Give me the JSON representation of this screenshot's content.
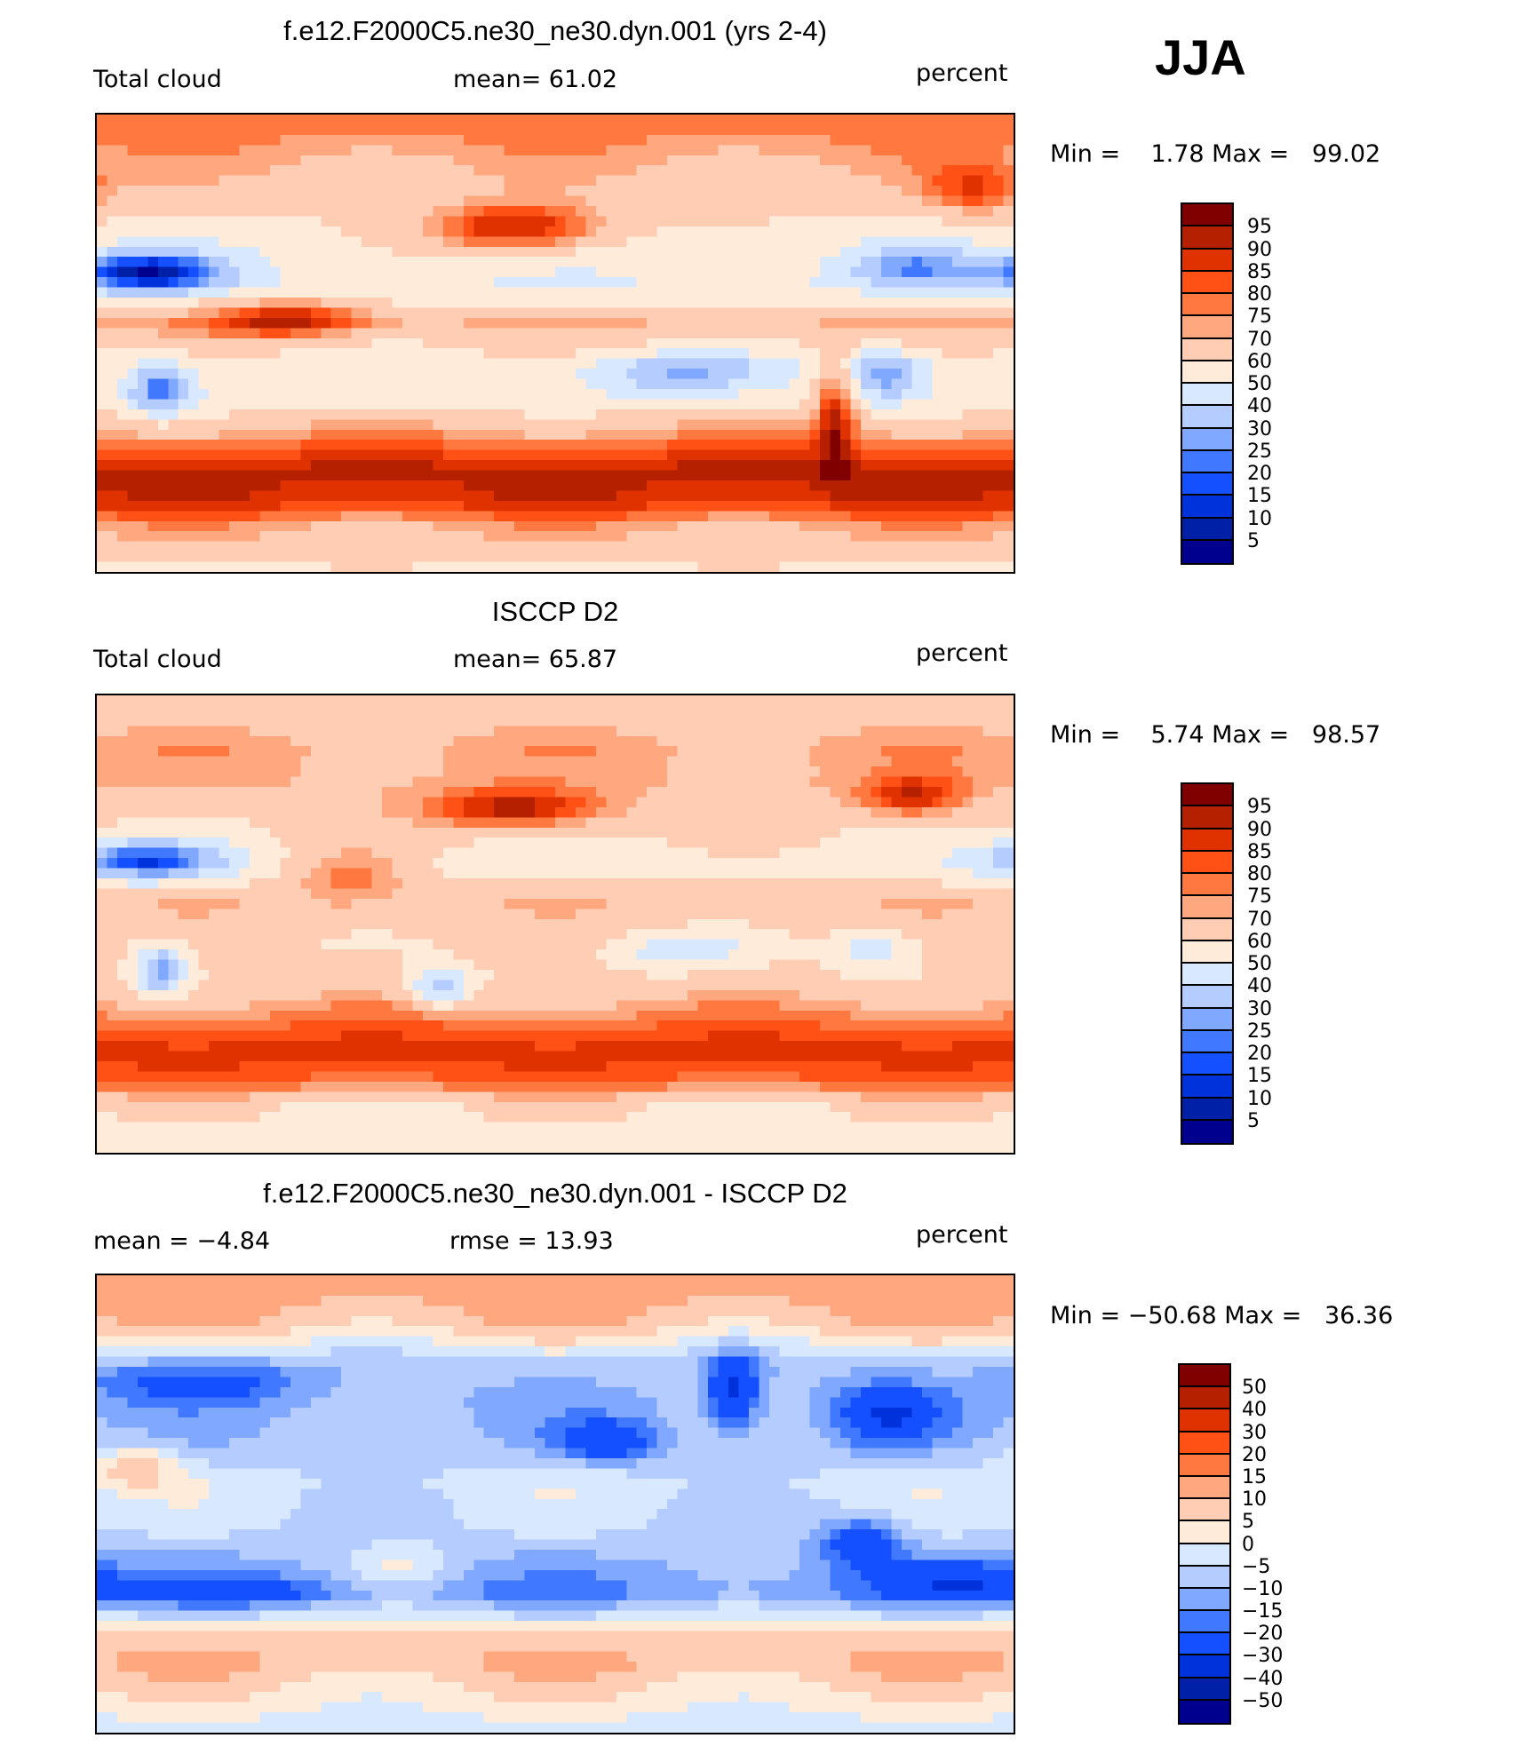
{
  "jja": "JJA",
  "chart_data": [
    {
      "type": "heatmap",
      "title": "f.e12.F2000C5.ne30_ne30.dyn.001 (yrs 2-4)",
      "left_label": "Total cloud",
      "center_label": "mean=  61.02",
      "units": "percent",
      "minmax": "Min =    1.78 Max =   99.02",
      "xlim": [
        0,
        360
      ],
      "ylim": [
        -90,
        90
      ],
      "levels": [
        "95",
        "90",
        "85",
        "80",
        "75",
        "70",
        "60",
        "50",
        "40",
        "30",
        "25",
        "20",
        "15",
        "10",
        "5"
      ],
      "thresholds": [
        5,
        10,
        15,
        20,
        25,
        30,
        40,
        50,
        60,
        70,
        75,
        80,
        85,
        90,
        95
      ],
      "zonal": [
        [
          90,
          80
        ],
        [
          70,
          70
        ],
        [
          55,
          62
        ],
        [
          40,
          55
        ],
        [
          22,
          50
        ],
        [
          8,
          70
        ],
        [
          -8,
          55
        ],
        [
          -22,
          55
        ],
        [
          -35,
          72
        ],
        [
          -50,
          92
        ],
        [
          -62,
          88
        ],
        [
          -72,
          72
        ],
        [
          -90,
          58
        ]
      ],
      "features": [
        [
          165,
          45,
          35,
          10,
          35
        ],
        [
          20,
          28,
          30,
          8,
          -45
        ],
        [
          25,
          -18,
          12,
          10,
          -35
        ],
        [
          230,
          -12,
          35,
          8,
          -25
        ],
        [
          310,
          -12,
          15,
          10,
          -30
        ],
        [
          320,
          30,
          25,
          8,
          -25
        ],
        [
          75,
          10,
          30,
          8,
          25
        ],
        [
          290,
          -25,
          8,
          20,
          30
        ],
        [
          345,
          60,
          20,
          10,
          20
        ]
      ]
    },
    {
      "type": "heatmap",
      "title": "ISCCP D2",
      "left_label": "Total cloud",
      "center_label": "mean=  65.87",
      "units": "percent",
      "minmax": "Min =    5.74 Max =   98.57",
      "xlim": [
        0,
        360
      ],
      "ylim": [
        -90,
        90
      ],
      "levels": [
        "95",
        "90",
        "85",
        "80",
        "75",
        "70",
        "60",
        "50",
        "40",
        "30",
        "25",
        "20",
        "15",
        "10",
        "5"
      ],
      "thresholds": [
        5,
        10,
        15,
        20,
        25,
        30,
        40,
        50,
        60,
        70,
        75,
        80,
        85,
        90,
        95
      ],
      "zonal": [
        [
          90,
          60
        ],
        [
          70,
          72
        ],
        [
          55,
          70
        ],
        [
          40,
          62
        ],
        [
          22,
          55
        ],
        [
          8,
          68
        ],
        [
          -8,
          62
        ],
        [
          -22,
          62
        ],
        [
          -35,
          75
        ],
        [
          -50,
          88
        ],
        [
          -62,
          80
        ],
        [
          -72,
          60
        ],
        [
          -90,
          55
        ]
      ],
      "features": [
        [
          165,
          45,
          35,
          8,
          30
        ],
        [
          20,
          25,
          30,
          8,
          -40
        ],
        [
          25,
          -18,
          10,
          10,
          -35
        ],
        [
          135,
          -25,
          12,
          8,
          -30
        ],
        [
          230,
          -10,
          25,
          7,
          -20
        ],
        [
          305,
          -10,
          15,
          8,
          -20
        ],
        [
          100,
          20,
          25,
          10,
          20
        ],
        [
          320,
          50,
          20,
          8,
          25
        ]
      ]
    },
    {
      "type": "heatmap",
      "title": "f.e12.F2000C5.ne30_ne30.dyn.001 - ISCCP D2",
      "left_label": "mean =   −4.84",
      "center_label": "rmse =   13.93",
      "units": "percent",
      "minmax": "Min = −50.68 Max =   36.36",
      "xlim": [
        0,
        360
      ],
      "ylim": [
        -90,
        90
      ],
      "levels": [
        "50",
        "40",
        "30",
        "20",
        "15",
        "10",
        "5",
        "0",
        "−5",
        "−10",
        "−15",
        "−20",
        "−30",
        "−40",
        "−50"
      ],
      "thresholds": [
        -50,
        -40,
        -30,
        -20,
        -15,
        -10,
        -5,
        0,
        5,
        10,
        15,
        20,
        30,
        40,
        50
      ],
      "zonal": [
        [
          90,
          15
        ],
        [
          70,
          8
        ],
        [
          55,
          -8
        ],
        [
          40,
          -10
        ],
        [
          22,
          -8
        ],
        [
          8,
          -3
        ],
        [
          -8,
          -5
        ],
        [
          -22,
          -10
        ],
        [
          -35,
          -15
        ],
        [
          -50,
          5
        ],
        [
          -62,
          10
        ],
        [
          -72,
          5
        ],
        [
          -90,
          -3
        ]
      ],
      "features": [
        [
          40,
          48,
          40,
          8,
          -15
        ],
        [
          200,
          25,
          20,
          8,
          -20
        ],
        [
          310,
          35,
          20,
          12,
          -20
        ],
        [
          250,
          45,
          10,
          15,
          -25
        ],
        [
          300,
          -15,
          15,
          10,
          -20
        ],
        [
          60,
          -35,
          40,
          6,
          -10
        ],
        [
          340,
          -30,
          30,
          8,
          -15
        ],
        [
          15,
          15,
          15,
          8,
          15
        ],
        [
          120,
          -25,
          20,
          10,
          10
        ]
      ]
    }
  ],
  "colors": [
    "#00008f",
    "#0020a8",
    "#0032dc",
    "#1450ff",
    "#4078ff",
    "#80a8ff",
    "#b4ccff",
    "#d8e8ff",
    "#ffebda",
    "#ffccb4",
    "#ffa880",
    "#ff7840",
    "#ff5016",
    "#e03200",
    "#b42000",
    "#800000"
  ]
}
